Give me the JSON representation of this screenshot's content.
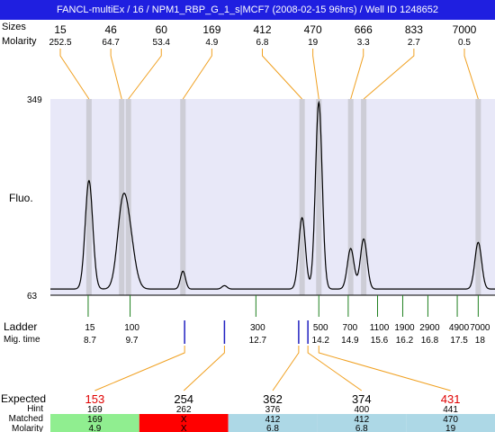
{
  "window": {
    "title": "FANCL-multiEx / 16 / NPM1_RBP_G_1_s|MCF7 (2008-02-15 96hrs) / Well ID 1248652"
  },
  "colors": {
    "title_bar": "#1f1fe0",
    "plot_bg": "#e8e8f8",
    "peak_band": "#c8c8d0",
    "trace": "#000000",
    "leader_orange": "#f0a020",
    "ladder_tick_green": "#208020",
    "migration_marker_blue": "#2020c0",
    "expected_red": "#e00000",
    "matched_green": "#90ee90",
    "matched_red": "#ff0000",
    "matched_blue": "#add8e6"
  },
  "chart_data": {
    "type": "line",
    "ylabel": "Fluo.",
    "ylim": [
      63,
      349
    ],
    "y_ticks": [
      "349",
      "63"
    ],
    "row_labels": {
      "sizes": "Sizes",
      "molarity": "Molarity"
    },
    "peaks": [
      {
        "size": "15",
        "molarity": "252.5",
        "mig": 8.72
      },
      {
        "size": "46",
        "molarity": "64.7",
        "mig": 9.5
      },
      {
        "size": "60",
        "molarity": "53.4",
        "mig": 9.66
      },
      {
        "size": "169",
        "molarity": "4.9",
        "mig": 10.96
      },
      {
        "size": "412",
        "molarity": "6.8",
        "mig": 13.8
      },
      {
        "size": "470",
        "molarity": "19",
        "mig": 14.2
      },
      {
        "size": "666",
        "molarity": "3.3",
        "mig": 14.96
      },
      {
        "size": "833",
        "molarity": "2.7",
        "mig": 15.27
      },
      {
        "size": "7000",
        "molarity": "0.5",
        "mig": 18.0
      }
    ],
    "trace": {
      "baseline": 72,
      "components": [
        {
          "mig": 8.72,
          "height": 230,
          "width": 0.09
        },
        {
          "mig": 9.5,
          "height": 160,
          "width": 0.12
        },
        {
          "mig": 9.66,
          "height": 152,
          "width": 0.14
        },
        {
          "mig": 10.96,
          "height": 98,
          "width": 0.06
        },
        {
          "mig": 11.95,
          "height": 77,
          "width": 0.06
        },
        {
          "mig": 13.8,
          "height": 176,
          "width": 0.08
        },
        {
          "mig": 14.2,
          "height": 344,
          "width": 0.08
        },
        {
          "mig": 14.96,
          "height": 131,
          "width": 0.08
        },
        {
          "mig": 15.27,
          "height": 145,
          "width": 0.08
        },
        {
          "mig": 18.0,
          "height": 140,
          "width": 0.08
        }
      ]
    },
    "ladder": {
      "label": "Ladder",
      "mig_label": "Mig. time",
      "items": [
        {
          "size": "15",
          "mig": 8.7,
          "mig_label": "8.7"
        },
        {
          "size": "100",
          "mig": 9.7,
          "mig_label": "9.7"
        },
        {
          "size": "300",
          "mig": 12.7,
          "mig_label": "12.7"
        },
        {
          "size": "500",
          "mig": 14.2,
          "mig_label": "14.2"
        },
        {
          "size": "700",
          "mig": 14.9,
          "mig_label": "14.9"
        },
        {
          "size": "1100",
          "mig": 15.6,
          "mig_label": "15.6"
        },
        {
          "size": "1900",
          "mig": 16.2,
          "mig_label": "16.2"
        },
        {
          "size": "2900",
          "mig": 16.8,
          "mig_label": "16.8"
        },
        {
          "size": "4900",
          "mig": 17.5,
          "mig_label": "17.5"
        },
        {
          "size": "7000",
          "mig": 18,
          "mig_label": "18"
        }
      ]
    },
    "expected_markers": [
      11.0,
      11.95,
      13.72,
      13.94
    ],
    "table": {
      "labels": {
        "expected": "Expected",
        "hint": "Hint",
        "matched": "Matched",
        "molarity": "Molarity"
      },
      "columns": [
        {
          "expected": "153",
          "hint": "169",
          "matched": "169",
          "molarity": "4.9",
          "expected_color": "#e00000",
          "match_color": "#90ee90",
          "peak_index": 3
        },
        {
          "expected": "254",
          "hint": "262",
          "matched": "X",
          "molarity": "X",
          "expected_color": "#000000",
          "match_color": "#ff0000",
          "peak_index": null
        },
        {
          "expected": "362",
          "hint": "376",
          "matched": "412",
          "molarity": "6.8",
          "expected_color": "#000000",
          "match_color": "#add8e6",
          "peak_index": 4
        },
        {
          "expected": "374",
          "hint": "400",
          "matched": "412",
          "molarity": "6.8",
          "expected_color": "#000000",
          "match_color": "#add8e6",
          "peak_index": 4
        },
        {
          "expected": "431",
          "hint": "441",
          "matched": "470",
          "molarity": "19",
          "expected_color": "#e00000",
          "match_color": "#add8e6",
          "peak_index": 5
        }
      ]
    }
  }
}
